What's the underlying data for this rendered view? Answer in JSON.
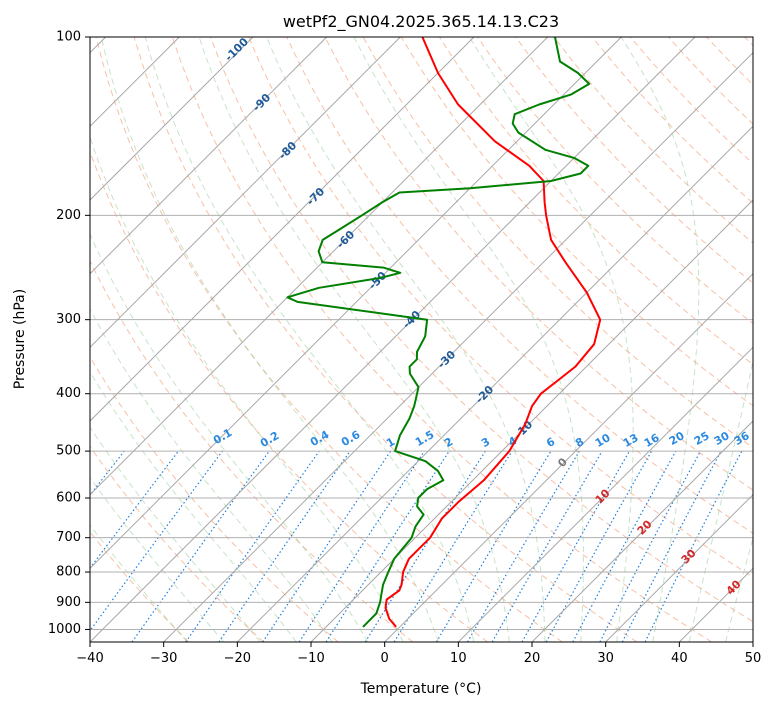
{
  "chart_data": {
    "type": "line",
    "title": "wetPf2_GN04.2025.365.14.13.C23",
    "xlabel": "Temperature (°C)",
    "ylabel": "Pressure (hPa)",
    "xlim": [
      -40,
      50
    ],
    "ylim": [
      1050,
      100
    ],
    "y_scale": "log",
    "grid": true,
    "x_ticks": [
      -40,
      -30,
      -20,
      -10,
      0,
      10,
      20,
      30,
      40,
      50
    ],
    "y_ticks": [
      100,
      200,
      300,
      400,
      500,
      600,
      700,
      800,
      900,
      1000
    ],
    "skew_t": true,
    "isotherms_deg": [
      -140,
      -130,
      -120,
      -110,
      -100,
      -90,
      -80,
      -70,
      -60,
      -50,
      -40,
      -30,
      -20,
      -10,
      0,
      10,
      20,
      30,
      40,
      50
    ],
    "series": [
      {
        "color": "#ff0000",
        "points": [
          [
            -0.5,
            990
          ],
          [
            -2.5,
            960
          ],
          [
            -4.5,
            920
          ],
          [
            -5.5,
            890
          ],
          [
            -5,
            860
          ],
          [
            -5.5,
            840
          ],
          [
            -7,
            800
          ],
          [
            -8,
            760
          ],
          [
            -8,
            700
          ],
          [
            -9,
            650
          ],
          [
            -9,
            610
          ],
          [
            -8.5,
            560
          ],
          [
            -9,
            500
          ],
          [
            -10.5,
            450
          ],
          [
            -12,
            420
          ],
          [
            -12.5,
            400
          ],
          [
            -12,
            380
          ],
          [
            -11.5,
            360
          ],
          [
            -12,
            330
          ],
          [
            -14.5,
            300
          ],
          [
            -20,
            270
          ],
          [
            -27,
            240
          ],
          [
            -32,
            220
          ],
          [
            -36,
            200
          ],
          [
            -38,
            190
          ],
          [
            -41,
            175
          ],
          [
            -45,
            165
          ],
          [
            -53,
            150
          ],
          [
            -63,
            130
          ],
          [
            -70,
            115
          ],
          [
            -77,
            100
          ]
        ]
      },
      {
        "color": "#008000",
        "points": [
          [
            -5,
            990
          ],
          [
            -5,
            960
          ],
          [
            -5,
            940
          ],
          [
            -6,
            900
          ],
          [
            -7,
            870
          ],
          [
            -8,
            840
          ],
          [
            -9,
            800
          ],
          [
            -10,
            760
          ],
          [
            -10.5,
            700
          ],
          [
            -11.5,
            670
          ],
          [
            -12,
            640
          ],
          [
            -14,
            620
          ],
          [
            -15,
            600
          ],
          [
            -15,
            580
          ],
          [
            -14,
            560
          ],
          [
            -16,
            540
          ],
          [
            -19,
            520
          ],
          [
            -24.5,
            500
          ],
          [
            -26,
            470
          ],
          [
            -27,
            440
          ],
          [
            -28,
            420
          ],
          [
            -30,
            390
          ],
          [
            -33,
            370
          ],
          [
            -34,
            360
          ],
          [
            -34,
            350
          ],
          [
            -35,
            340
          ],
          [
            -36,
            320
          ],
          [
            -38,
            300
          ],
          [
            -58,
            280
          ],
          [
            -60,
            275
          ],
          [
            -57,
            265
          ],
          [
            -50,
            255
          ],
          [
            -48,
            250
          ],
          [
            -51,
            245
          ],
          [
            -60,
            240
          ],
          [
            -62,
            230
          ],
          [
            -63,
            220
          ],
          [
            -62,
            210
          ],
          [
            -61,
            200
          ],
          [
            -60,
            190
          ],
          [
            -59,
            183
          ],
          [
            -50,
            180
          ],
          [
            -40,
            175
          ],
          [
            -37,
            170
          ],
          [
            -37,
            165
          ],
          [
            -40,
            160
          ],
          [
            -45,
            155
          ],
          [
            -51,
            145
          ],
          [
            -53,
            140
          ],
          [
            -54,
            135
          ],
          [
            -52,
            130
          ],
          [
            -49,
            125
          ],
          [
            -48,
            120
          ],
          [
            -51,
            115
          ],
          [
            -55,
            110
          ],
          [
            -59,
            100
          ]
        ]
      }
    ],
    "dry_adiabat_labels": [
      -100,
      -90,
      -80,
      -70,
      -60,
      -50,
      -40,
      -30,
      -20,
      -10
    ],
    "mixing_ratio_labels": [
      "0.1",
      "0.2",
      "0.4",
      "0.6",
      "1",
      "1.5",
      "2",
      "3",
      "4",
      "6",
      "8",
      "10",
      "13",
      "16",
      "20",
      "25",
      "30",
      "36"
    ],
    "moist_adiabat_labels": [
      0,
      10,
      20,
      30,
      40
    ]
  }
}
